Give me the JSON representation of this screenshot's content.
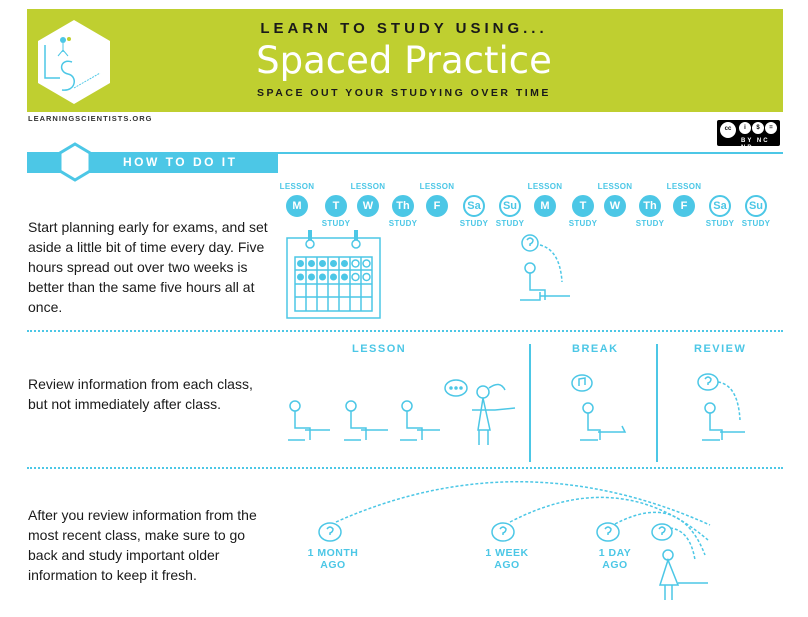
{
  "header": {
    "kicker": "LEARN TO STUDY USING...",
    "title": "Spaced Practice",
    "subtitle": "SPACE OUT YOUR STUDYING OVER TIME",
    "logo_text": "LS Scientists",
    "site": "LEARNINGSCIENTISTS.ORG",
    "license": {
      "icons": [
        "cc-icon",
        "by-icon",
        "nc-icon",
        "nd-icon"
      ],
      "tags": "BY NC ND"
    }
  },
  "colors": {
    "brand_green": "#bfcf30",
    "accent_blue": "#4cc7e6"
  },
  "section": {
    "title": "HOW TO DO IT"
  },
  "rows": [
    {
      "text": "Start planning early for exams, and set aside a little bit of time every day. Five hours spread out over two weeks is better than the same five hours all at once.",
      "days": [
        {
          "day": "M",
          "top": "LESSON",
          "bottom": ""
        },
        {
          "day": "T",
          "top": "",
          "bottom": "STUDY"
        },
        {
          "day": "W",
          "top": "LESSON",
          "bottom": ""
        },
        {
          "day": "Th",
          "top": "",
          "bottom": "STUDY"
        },
        {
          "day": "F",
          "top": "LESSON",
          "bottom": ""
        },
        {
          "day": "Sa",
          "top": "",
          "bottom": "STUDY"
        },
        {
          "day": "Su",
          "top": "",
          "bottom": "STUDY"
        },
        {
          "day": "M",
          "top": "LESSON",
          "bottom": ""
        },
        {
          "day": "T",
          "top": "",
          "bottom": "STUDY"
        },
        {
          "day": "W",
          "top": "LESSON",
          "bottom": ""
        },
        {
          "day": "Th",
          "top": "",
          "bottom": "STUDY"
        },
        {
          "day": "F",
          "top": "LESSON",
          "bottom": ""
        },
        {
          "day": "Sa",
          "top": "",
          "bottom": "STUDY"
        },
        {
          "day": "Su",
          "top": "",
          "bottom": "STUDY"
        }
      ]
    },
    {
      "text": "Review information from each class, but not immediately after class.",
      "labels": {
        "lesson": "LESSON",
        "break": "BREAK",
        "review": "REVIEW"
      }
    },
    {
      "text": "After you review information from the most recent class, make sure to go back and study important older information to keep it fresh.",
      "ago": [
        {
          "line1": "1 MONTH",
          "line2": "AGO"
        },
        {
          "line1": "1 WEEK",
          "line2": "AGO"
        },
        {
          "line1": "1 DAY",
          "line2": "AGO"
        }
      ]
    }
  ]
}
